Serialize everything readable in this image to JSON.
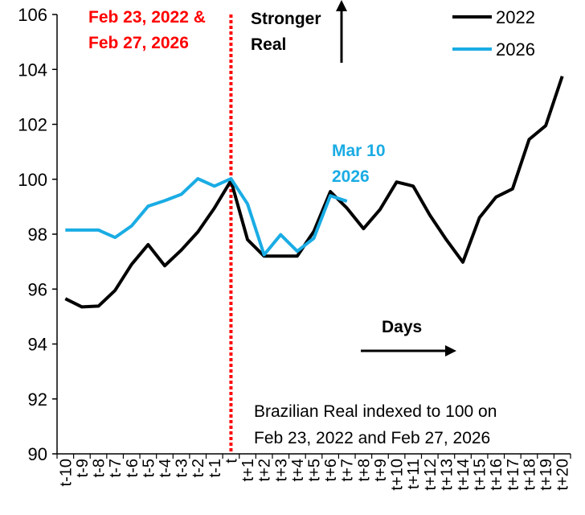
{
  "chart_data": {
    "type": "line",
    "categories": [
      "t-10",
      "t-9",
      "t-8",
      "t-7",
      "t-6",
      "t-5",
      "t-4",
      "t-3",
      "t-2",
      "t-1",
      "t",
      "t+1",
      "t+2",
      "t+3",
      "t+4",
      "t+5",
      "t+6",
      "t+7",
      "t+8",
      "t+9",
      "t+10",
      "t+11",
      "t+12",
      "t+13",
      "t+14",
      "t+15",
      "t+16",
      "t+17",
      "t+18",
      "t+19",
      "t+20"
    ],
    "series": [
      {
        "name": "2022",
        "color": "#000000",
        "values": [
          95.65,
          95.35,
          95.38,
          95.95,
          96.9,
          97.62,
          96.85,
          97.42,
          98.08,
          98.95,
          99.95,
          97.8,
          97.2,
          97.2,
          97.2,
          98.1,
          99.55,
          98.95,
          98.2,
          98.9,
          99.9,
          99.75,
          98.7,
          97.8,
          96.98,
          98.6,
          99.35,
          99.65,
          101.45,
          101.95,
          103.75
        ]
      },
      {
        "name": "2026",
        "color": "#1AACE4",
        "values": [
          98.15,
          98.15,
          98.15,
          97.88,
          98.3,
          99.02,
          99.22,
          99.45,
          100.02,
          99.75,
          100.02,
          99.1,
          97.25,
          97.98,
          97.38,
          97.85,
          99.4,
          99.2,
          null,
          null,
          null,
          null,
          null,
          null,
          null,
          null,
          null,
          null,
          null,
          null,
          null
        ]
      }
    ],
    "ylim": [
      90,
      106
    ],
    "yticks": [
      90,
      92,
      94,
      96,
      98,
      100,
      102,
      104,
      106
    ],
    "title": "",
    "xlabel": "",
    "ylabel": "",
    "grid": false,
    "legend_position": "top-right",
    "event_marker": {
      "category": "t",
      "label_line1": "Feb 23, 2022 &",
      "label_line2": "Feb 27, 2026",
      "color": "#FF0000"
    },
    "annotations": {
      "stronger_line1": "Stronger",
      "stronger_line2": "Real",
      "days": "Days",
      "mar_line1": "Mar 10",
      "mar_line2": "2026",
      "mar_color": "#1AACE4",
      "note_line1": "Brazilian Real indexed to 100 on",
      "note_line2": "Feb 23, 2022 and Feb 27, 2026"
    }
  }
}
